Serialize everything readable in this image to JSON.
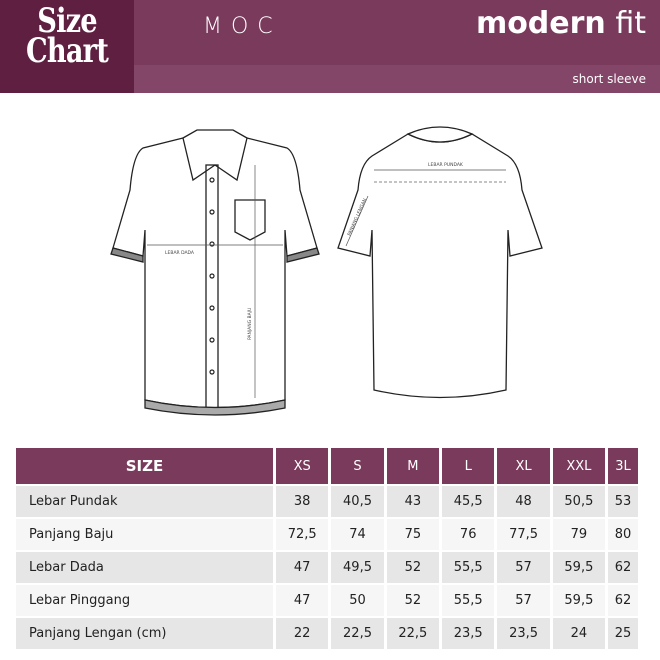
{
  "header": {
    "logo_line1": "Size",
    "logo_line2": "Chart",
    "brand": "MOC",
    "fit_bold": "modern",
    "fit_light": "fit",
    "subtitle": "short sleeve"
  },
  "colors": {
    "dark": "#5f1f40",
    "primary": "#7a3a5c",
    "strip": "#844668"
  },
  "diagram": {
    "front_width": "LEBAR DADA",
    "front_length": "PANJANG BAJU",
    "back_shoulder": "LEBAR PUNDAK",
    "back_sleeve": "PANJANG LENGAN"
  },
  "table": {
    "header": "SIZE",
    "sizes": [
      "XS",
      "S",
      "M",
      "L",
      "XL",
      "XXL",
      "3L"
    ],
    "rows": [
      {
        "label": "Lebar Pundak",
        "values": [
          "38",
          "40,5",
          "43",
          "45,5",
          "48",
          "50,5",
          "53"
        ]
      },
      {
        "label": "Panjang Baju",
        "values": [
          "72,5",
          "74",
          "75",
          "76",
          "77,5",
          "79",
          "80"
        ]
      },
      {
        "label": "Lebar Dada",
        "values": [
          "47",
          "49,5",
          "52",
          "55,5",
          "57",
          "59,5",
          "62"
        ]
      },
      {
        "label": "Lebar Pinggang",
        "values": [
          "47",
          "50",
          "52",
          "55,5",
          "57",
          "59,5",
          "62"
        ]
      },
      {
        "label": "Panjang Lengan (cm)",
        "values": [
          "22",
          "22,5",
          "22,5",
          "23,5",
          "23,5",
          "24",
          "25"
        ]
      }
    ]
  }
}
